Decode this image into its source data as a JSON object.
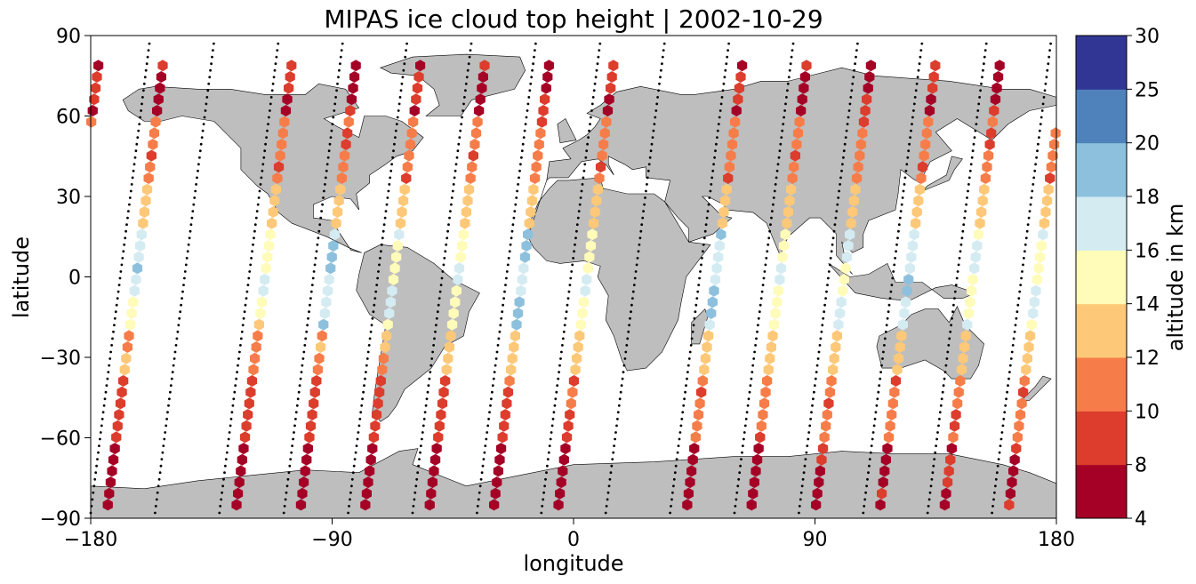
{
  "chart_data": {
    "type": "scatter",
    "title": "MIPAS ice cloud top height | 2002-10-29",
    "xlabel": "longitude",
    "ylabel": "latitude",
    "xlim": [
      -180,
      180
    ],
    "ylim": [
      -90,
      90
    ],
    "xticks": [
      -180,
      -90,
      0,
      90,
      180
    ],
    "xtick_labels": [
      "−180",
      "−90",
      "0",
      "90",
      "180"
    ],
    "yticks": [
      90,
      60,
      30,
      0,
      -30,
      -60,
      -90
    ],
    "ytick_labels": [
      "90",
      "60",
      "30",
      "0",
      "−30",
      "−60",
      "−90"
    ],
    "grid": false,
    "background": "world map, grey continents (#bebebe)",
    "land_color": "#bebebe",
    "colorbar": {
      "label": "altitude in km",
      "bounds": [
        4,
        8,
        10,
        12,
        14,
        16,
        18,
        20,
        25,
        30
      ],
      "tick_labels": [
        "4",
        "8",
        "10",
        "12",
        "14",
        "16",
        "18",
        "20",
        "25",
        "30"
      ],
      "colors": [
        "#a50026",
        "#d73027",
        "#f46d43",
        "#fdae61",
        "#fee090",
        "#ffffbf",
        "#e0f3f8",
        "#abd9e9",
        "#74add1",
        "#4575b4",
        "#313695"
      ],
      "bin_colors": [
        "#a50026",
        "#dc3d2d",
        "#f67d4a",
        "#fdc878",
        "#fffbb9",
        "#d4ebf2",
        "#8dc0dd",
        "#4f82ba",
        "#313695"
      ]
    },
    "marker": "hexagon",
    "orbit_track_marker": "small black dots",
    "orbit_track_count": 15,
    "series_note": "Each orbit track crosses the map diagonally from south to north; altitudes are shown at colored hexagon markers along the tracks."
  }
}
